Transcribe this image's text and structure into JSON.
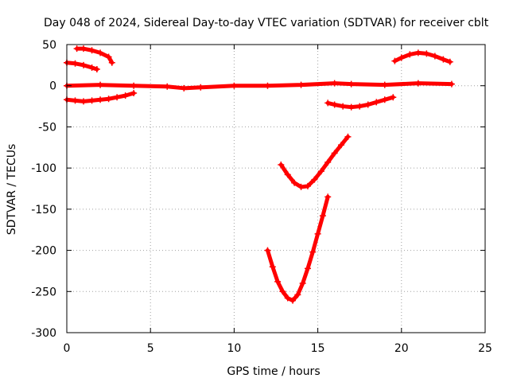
{
  "chart_data": {
    "type": "scatter",
    "title": "Day 048 of 2024, Sidereal Day-to-day VTEC variation (SDTVAR) for receiver cblt",
    "xlabel": "GPS time / hours",
    "ylabel": "SDTVAR / TECUs",
    "xlim": [
      0,
      25
    ],
    "ylim": [
      -300,
      50
    ],
    "xticks": [
      0,
      5,
      10,
      15,
      20,
      25
    ],
    "yticks": [
      -300,
      -250,
      -200,
      -150,
      -100,
      -50,
      0,
      50
    ],
    "xtick_labels": [
      "0",
      "5",
      "10",
      "15",
      "20",
      "25"
    ],
    "ytick_labels": [
      "-300",
      "-250",
      "-200",
      "-150",
      "-100",
      "-50",
      "0",
      "50"
    ],
    "grid": true,
    "marker_color": "#ff0000",
    "series": [
      {
        "x": [
          0.0,
          2.0,
          4.0,
          6.0,
          7.0,
          8.0,
          10.0,
          12.0,
          14.0,
          16.0,
          17.0,
          19.0,
          21.0,
          23.0
        ],
        "y": [
          0,
          1,
          0,
          -1,
          -3,
          -2,
          0,
          0,
          1,
          3,
          2,
          1,
          3,
          2
        ]
      },
      {
        "x": [
          0.0,
          0.5,
          1.0,
          1.5,
          1.8
        ],
        "y": [
          28,
          27,
          25,
          22,
          20
        ]
      },
      {
        "x": [
          0.6,
          1.0,
          1.5,
          2.0,
          2.5,
          2.7
        ],
        "y": [
          45,
          45,
          43,
          40,
          35,
          28
        ]
      },
      {
        "x": [
          0.0,
          0.5,
          1.0,
          1.5,
          2.0,
          2.5,
          3.0,
          3.5,
          4.0
        ],
        "y": [
          -17,
          -18,
          -19,
          -18,
          -17,
          -16,
          -14,
          -12,
          -9
        ]
      },
      {
        "x": [
          15.6,
          16.0,
          16.5,
          17.0,
          17.5,
          18.0,
          18.5,
          19.0,
          19.5
        ],
        "y": [
          -21,
          -23,
          -25,
          -26,
          -25,
          -23,
          -20,
          -17,
          -14
        ]
      },
      {
        "x": [
          19.6,
          20.0,
          20.5,
          21.0,
          21.5,
          22.0,
          22.5,
          22.9
        ],
        "y": [
          30,
          34,
          38,
          40,
          39,
          36,
          32,
          29
        ]
      },
      {
        "x": [
          12.8,
          13.2,
          13.6,
          14.0,
          14.4,
          14.8,
          15.2,
          15.6,
          16.0,
          16.4,
          16.8
        ],
        "y": [
          -96,
          -108,
          -118,
          -123,
          -122,
          -114,
          -104,
          -93,
          -82,
          -72,
          -62
        ]
      },
      {
        "x": [
          12.0,
          12.3,
          12.6,
          12.9,
          13.2,
          13.5,
          13.8,
          14.1,
          14.4,
          14.7,
          15.0,
          15.3,
          15.6
        ],
        "y": [
          -200,
          -220,
          -238,
          -250,
          -258,
          -261,
          -254,
          -240,
          -222,
          -202,
          -180,
          -158,
          -135
        ]
      }
    ]
  }
}
